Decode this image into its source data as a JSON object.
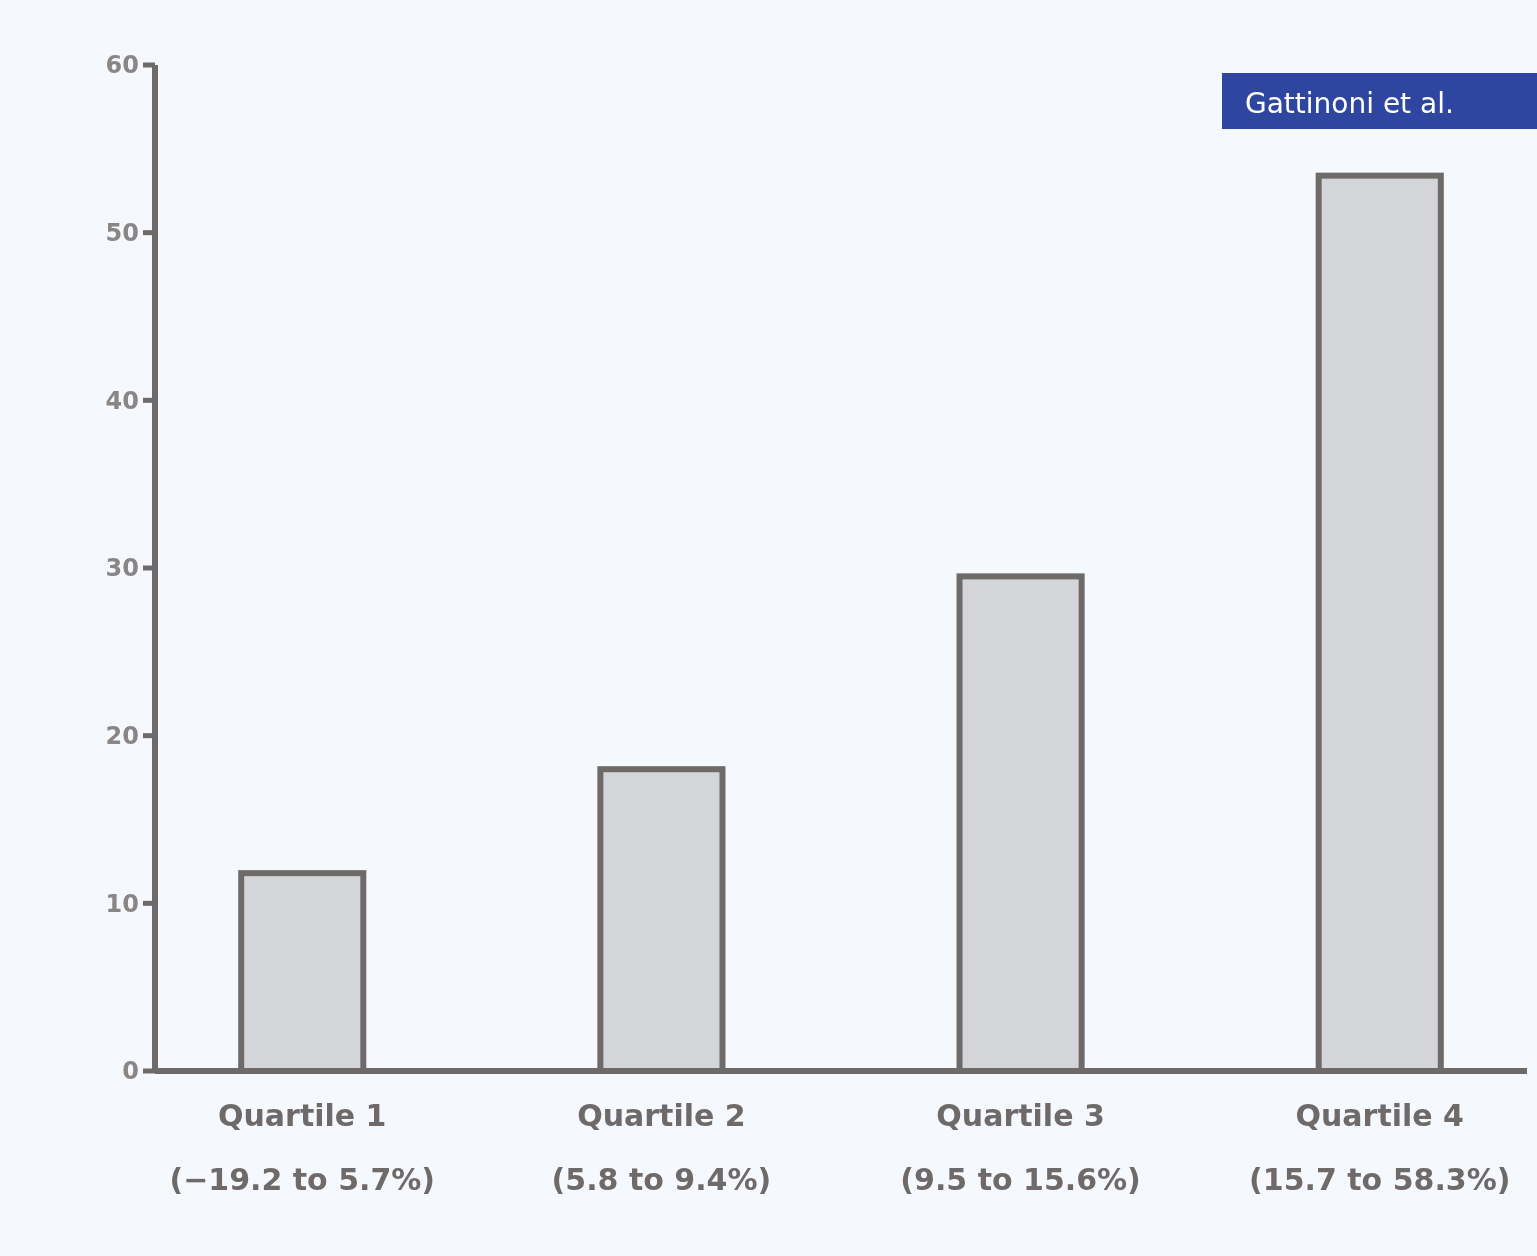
{
  "chart_data": {
    "type": "bar",
    "categories": [
      "Quartile 1\n(−19.2 to 5.7%)",
      "Quartile 2\n(5.8 to 9.4%)",
      "Quartile 3\n(9.5 to 15.6%)",
      "Quartile 4\n(15.7 to 58.3%)"
    ],
    "values": [
      11.8,
      18,
      29.5,
      53.4
    ],
    "color": "#d3d5d9",
    "ylim": [
      0,
      60
    ],
    "yticks": [
      0,
      10,
      20,
      30,
      40,
      50,
      60
    ],
    "annotations": [
      "Gattinoni et al."
    ]
  }
}
